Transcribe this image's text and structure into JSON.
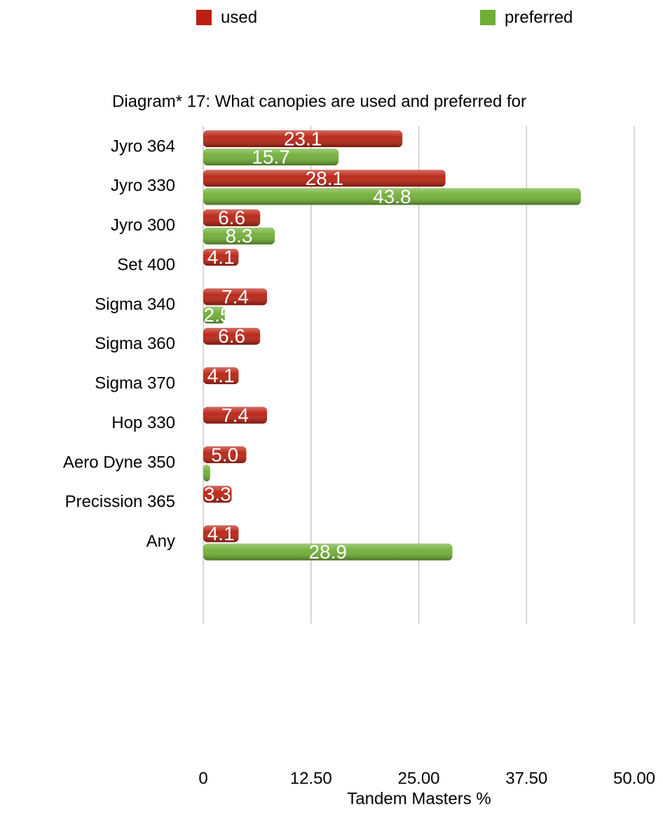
{
  "chart_data": {
    "type": "bar",
    "orientation": "horizontal",
    "title": "Diagram* 17: What canopies are used and preferred for",
    "x_label": "Tandem Masters %",
    "categories": [
      "Jyro 364",
      "Jyro 330",
      "Jyro 300",
      "Set 400",
      "Sigma 340",
      "Sigma 360",
      "Sigma 370",
      "Hop 330",
      "Aero Dyne 350",
      "Precission 365",
      "Any"
    ],
    "series": [
      {
        "name": "used",
        "color": "#b8200f",
        "values": [
          23.1,
          28.1,
          6.6,
          4.1,
          7.4,
          6.6,
          4.1,
          7.4,
          5.0,
          3.3,
          4.1
        ],
        "value_labels": [
          "23.1",
          "28.1",
          "6.6",
          "4.1",
          "7.4",
          "6.6",
          "4.1",
          "7.4",
          "5.0",
          "3.3",
          "4.1"
        ]
      },
      {
        "name": "preferred",
        "color": "#6fae35",
        "values": [
          15.7,
          43.8,
          8.3,
          null,
          2.5,
          null,
          null,
          null,
          0.8,
          null,
          28.9
        ],
        "value_labels": [
          "15.7",
          "43.8",
          "8.3",
          null,
          "2.5",
          null,
          null,
          null,
          ".8",
          null,
          "28.9"
        ]
      }
    ],
    "xlim": [
      0,
      50
    ],
    "xticks": [
      0,
      {
        "value": 12.5,
        "label": "12.50"
      },
      {
        "value": 25,
        "label": "25.00"
      },
      {
        "value": 37.5,
        "label": "37.50"
      },
      {
        "value": 50,
        "label": "50.00"
      }
    ],
    "grid": true,
    "legend": "top"
  }
}
